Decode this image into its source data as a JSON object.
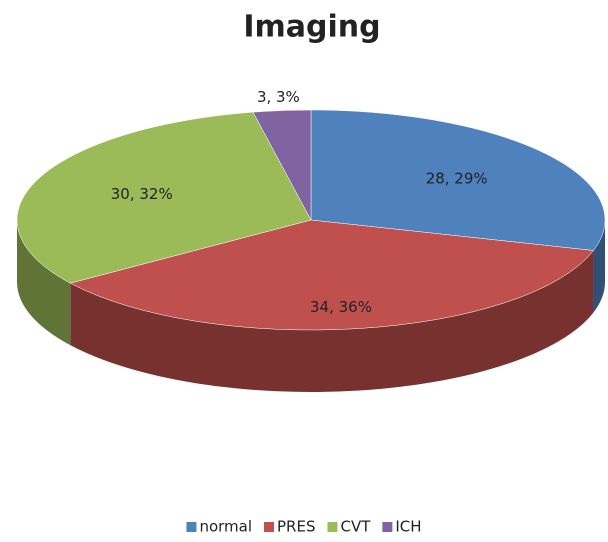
{
  "chart_data": {
    "type": "pie3d",
    "title": "Imaging",
    "categories": [
      "normal",
      "PRES",
      "CVT",
      "ICH"
    ],
    "values": [
      28,
      34,
      30,
      3
    ],
    "value_labels": [
      "28, 29%",
      "34, 36%",
      "30, 32%",
      "3, 3%"
    ],
    "colors": [
      "#4f81bd",
      "#c0504d",
      "#9bbb59",
      "#8064a2"
    ],
    "legend": "bottom"
  }
}
